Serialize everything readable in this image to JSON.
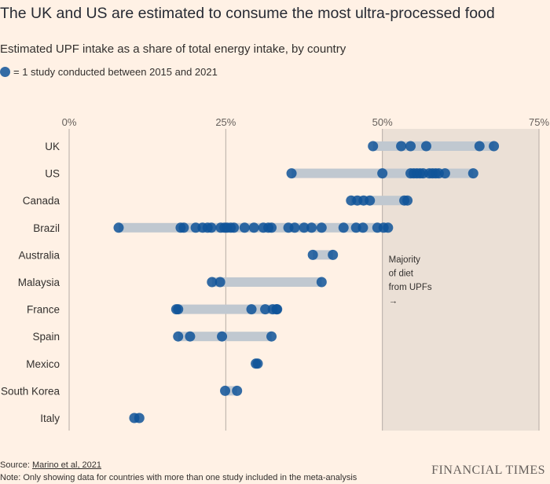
{
  "header": {
    "title": "The UK and US are estimated to consume the most ultra-processed food",
    "subtitle": "Estimated UPF intake as a share of total energy intake, by country",
    "legend_text": "= 1 study conducted between 2015 and 2021"
  },
  "footer": {
    "source_prefix": "Source: ",
    "source_link": "Marino et al, 2021",
    "note": "Note: Only showing data for countries with more than one study included in the meta-analysis",
    "brand": "FINANCIAL TIMES"
  },
  "colors": {
    "background": "#fff1e5",
    "dot": "#0f5499",
    "range_bar": "#c0c8d0",
    "shade": "#ebe0d6",
    "grid": "#b5aca5"
  },
  "chart_data": {
    "type": "scatter",
    "title": "Estimated UPF intake as a share of total energy intake, by country",
    "xlabel": "",
    "ylabel": "",
    "xlim": [
      0,
      75
    ],
    "ticks": [
      0,
      25,
      50,
      75
    ],
    "tick_labels": [
      "0%",
      "25%",
      "50%",
      "75%"
    ],
    "shaded_region": {
      "from": 50,
      "to": 75
    },
    "annotation": "Majority of diet from UPFs →",
    "annotation_lines": [
      "Majority",
      "of diet",
      "from UPFs",
      "→"
    ],
    "series": [
      {
        "name": "UK",
        "values": [
          48.5,
          53,
          54.5,
          57,
          65.5,
          67.8
        ]
      },
      {
        "name": "US",
        "values": [
          35.5,
          50,
          54.5,
          55,
          55.5,
          56,
          56.5,
          57.5,
          58,
          58.5,
          59,
          60,
          64.5
        ]
      },
      {
        "name": "Canada",
        "values": [
          45,
          46,
          47,
          48,
          53.5,
          54
        ]
      },
      {
        "name": "Brazil",
        "values": [
          7.9,
          17.8,
          18.3,
          20.2,
          21.3,
          22.1,
          22.7,
          24.2,
          24.8,
          25.2,
          25.8,
          26.3,
          28,
          29.5,
          31,
          31.8,
          32.3,
          35,
          36,
          37.5,
          38.7,
          40.3,
          43.8,
          45.8,
          46.9,
          49.2,
          50.2,
          50.9
        ]
      },
      {
        "name": "Australia",
        "values": [
          38.9,
          42.1
        ]
      },
      {
        "name": "Malaysia",
        "values": [
          22.8,
          24.1,
          40.3
        ]
      },
      {
        "name": "France",
        "values": [
          17.1,
          17.4,
          29.1,
          31.3,
          32.5,
          33.1,
          33.2
        ]
      },
      {
        "name": "Spain",
        "values": [
          17.4,
          19.3,
          24.4,
          32.3
        ]
      },
      {
        "name": "Mexico",
        "values": [
          29.8,
          30.1
        ]
      },
      {
        "name": "South Korea",
        "values": [
          24.9,
          26.8
        ]
      },
      {
        "name": "Italy",
        "values": [
          10.4,
          11.2
        ]
      }
    ]
  }
}
